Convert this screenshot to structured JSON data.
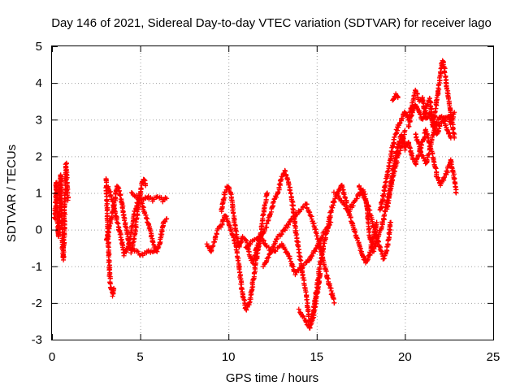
{
  "chart_data": {
    "type": "scatter",
    "title": "Day 146 of 2021, Sidereal Day-to-day VTEC variation (SDTVAR) for receiver lago",
    "xlabel": "GPS time / hours",
    "ylabel": "SDTVAR / TECUs",
    "xlim": [
      0,
      25
    ],
    "ylim": [
      -3,
      5
    ],
    "xticks": [
      0,
      5,
      10,
      15,
      20,
      25
    ],
    "yticks": [
      -3,
      -2,
      -1,
      0,
      1,
      2,
      3,
      4,
      5
    ],
    "xtick_labels": [
      "0",
      "5",
      "10",
      "15",
      "20",
      "25"
    ],
    "ytick_labels": [
      "-3",
      "-2",
      "-1",
      "0",
      "1",
      "2",
      "3",
      "4",
      "5"
    ],
    "grid": true,
    "grid_style": "dotted",
    "legend": "none",
    "marker": "plus",
    "marker_color": "#ff0000",
    "series": [
      {
        "segments": [
          [
            [
              0.15,
              0.3
            ],
            [
              0.2,
              0.8
            ],
            [
              0.25,
              1.3
            ],
            [
              0.3,
              0.6
            ],
            [
              0.35,
              -0.2
            ],
            [
              0.4,
              0.2
            ],
            [
              0.45,
              1.0
            ],
            [
              0.5,
              1.5
            ],
            [
              0.55,
              0.4
            ],
            [
              0.6,
              -0.5
            ],
            [
              0.65,
              -0.8
            ],
            [
              0.7,
              0.2
            ],
            [
              0.75,
              1.0
            ],
            [
              0.8,
              1.8
            ],
            [
              0.85,
              1.2
            ],
            [
              0.9,
              0.8
            ]
          ],
          [
            [
              3.05,
              1.4
            ],
            [
              3.1,
              0.8
            ],
            [
              3.15,
              0.2
            ],
            [
              3.2,
              -0.5
            ],
            [
              3.25,
              -1.0
            ],
            [
              3.3,
              -1.5
            ],
            [
              3.4,
              -1.7
            ],
            [
              3.45,
              -1.8
            ],
            [
              3.5,
              -1.6
            ]
          ],
          [
            [
              3.1,
              -0.3
            ],
            [
              3.3,
              0.2
            ],
            [
              3.5,
              0.6
            ],
            [
              3.7,
              1.2
            ],
            [
              3.9,
              0.9
            ],
            [
              4.1,
              0.3
            ],
            [
              4.3,
              -0.2
            ],
            [
              4.5,
              -0.6
            ],
            [
              4.7,
              -0.1
            ],
            [
              4.9,
              0.7
            ],
            [
              5.1,
              1.3
            ],
            [
              5.2,
              1.4
            ],
            [
              5.3,
              1.2
            ]
          ],
          [
            [
              3.1,
              1.2
            ],
            [
              3.3,
              1.0
            ],
            [
              3.5,
              0.6
            ],
            [
              3.7,
              0.2
            ],
            [
              3.9,
              -0.2
            ],
            [
              4.1,
              -0.7
            ],
            [
              4.3,
              -0.5
            ],
            [
              4.5,
              0.0
            ],
            [
              4.7,
              0.5
            ],
            [
              4.9,
              0.8
            ],
            [
              5.1,
              0.7
            ],
            [
              5.3,
              0.4
            ],
            [
              5.5,
              0.1
            ],
            [
              5.7,
              -0.3
            ],
            [
              5.9,
              -0.6
            ],
            [
              6.1,
              -0.4
            ],
            [
              6.3,
              0.2
            ],
            [
              6.5,
              0.3
            ]
          ],
          [
            [
              4.5,
              1.0
            ],
            [
              4.8,
              0.9
            ],
            [
              5.1,
              0.8
            ],
            [
              5.4,
              0.9
            ],
            [
              5.7,
              0.8
            ],
            [
              6.0,
              0.9
            ],
            [
              6.3,
              0.8
            ],
            [
              6.5,
              0.85
            ]
          ],
          [
            [
              4.5,
              -0.5
            ],
            [
              4.8,
              -0.6
            ],
            [
              5.1,
              -0.7
            ],
            [
              5.4,
              -0.6
            ],
            [
              5.7,
              -0.6
            ],
            [
              6.0,
              -0.5
            ]
          ],
          [
            [
              8.8,
              -0.4
            ],
            [
              9.0,
              -0.6
            ],
            [
              9.2,
              -0.3
            ],
            [
              9.4,
              0.0
            ],
            [
              9.6,
              0.1
            ],
            [
              9.8,
              0.4
            ],
            [
              10.0,
              0.2
            ],
            [
              10.2,
              -0.1
            ],
            [
              10.4,
              -0.4
            ],
            [
              10.6,
              -1.0
            ],
            [
              10.8,
              -1.8
            ],
            [
              11.0,
              -2.2
            ],
            [
              11.2,
              -2.0
            ],
            [
              11.4,
              -1.4
            ],
            [
              11.6,
              -0.8
            ],
            [
              11.8,
              -0.2
            ],
            [
              12.0,
              0.5
            ],
            [
              12.2,
              1.0
            ]
          ],
          [
            [
              9.6,
              0.5
            ],
            [
              9.8,
              1.0
            ],
            [
              10.0,
              1.2
            ],
            [
              10.2,
              0.8
            ],
            [
              10.4,
              0.0
            ],
            [
              10.6,
              -0.5
            ],
            [
              10.8,
              -0.2
            ],
            [
              11.0,
              -0.3
            ],
            [
              11.2,
              -0.7
            ],
            [
              11.4,
              -0.9
            ],
            [
              11.6,
              -0.5
            ],
            [
              11.8,
              -0.2
            ],
            [
              12.0,
              -0.1
            ],
            [
              12.2,
              0.2
            ],
            [
              12.4,
              0.5
            ],
            [
              12.6,
              0.8
            ],
            [
              12.8,
              1.0
            ],
            [
              13.0,
              1.4
            ],
            [
              13.2,
              1.6
            ],
            [
              13.4,
              1.3
            ],
            [
              13.6,
              0.8
            ],
            [
              13.8,
              0.0
            ],
            [
              14.0,
              -0.6
            ],
            [
              14.2,
              -1.2
            ],
            [
              14.4,
              -1.8
            ],
            [
              14.6,
              -2.5
            ],
            [
              14.8,
              -2.3
            ],
            [
              15.0,
              -1.6
            ],
            [
              15.2,
              -0.9
            ],
            [
              15.4,
              -0.4
            ],
            [
              15.6,
              0.0
            ],
            [
              15.8,
              0.5
            ],
            [
              16.0,
              0.8
            ],
            [
              16.2,
              1.0
            ],
            [
              16.4,
              1.2
            ],
            [
              16.6,
              0.9
            ],
            [
              16.8,
              0.5
            ],
            [
              17.0,
              0.2
            ],
            [
              17.2,
              -0.1
            ],
            [
              17.4,
              -0.4
            ],
            [
              17.6,
              -0.7
            ],
            [
              17.8,
              -0.9
            ],
            [
              18.0,
              -0.7
            ],
            [
              18.2,
              -0.3
            ],
            [
              18.4,
              0.2
            ]
          ],
          [
            [
              11.0,
              -0.5
            ],
            [
              11.4,
              -0.3
            ],
            [
              11.8,
              -0.2
            ],
            [
              12.2,
              -0.5
            ],
            [
              12.6,
              -0.6
            ],
            [
              13.0,
              -0.4
            ],
            [
              13.4,
              -0.7
            ],
            [
              13.8,
              -1.2
            ],
            [
              14.2,
              -1.0
            ],
            [
              14.6,
              -0.8
            ],
            [
              15.0,
              -0.5
            ],
            [
              15.4,
              -0.1
            ],
            [
              15.8,
              0.2
            ]
          ],
          [
            [
              12.0,
              -1.0
            ],
            [
              12.4,
              -0.6
            ],
            [
              12.8,
              -0.2
            ],
            [
              13.2,
              0.0
            ],
            [
              13.6,
              0.3
            ],
            [
              14.0,
              0.5
            ],
            [
              14.4,
              0.7
            ],
            [
              14.8,
              0.2
            ],
            [
              15.2,
              -0.5
            ],
            [
              15.6,
              -1.3
            ],
            [
              16.0,
              -2.0
            ]
          ],
          [
            [
              14.0,
              -2.2
            ],
            [
              14.4,
              -2.5
            ],
            [
              14.6,
              -2.7
            ],
            [
              14.8,
              -2.4
            ],
            [
              15.0,
              -1.8
            ],
            [
              15.2,
              -1.2
            ]
          ],
          [
            [
              16.0,
              1.0
            ],
            [
              16.4,
              0.8
            ],
            [
              16.8,
              0.5
            ],
            [
              17.2,
              0.8
            ],
            [
              17.6,
              1.1
            ],
            [
              18.0,
              0.5
            ],
            [
              18.4,
              -0.2
            ],
            [
              18.8,
              -0.8
            ],
            [
              19.0,
              -0.5
            ],
            [
              19.2,
              0.2
            ]
          ],
          [
            [
              17.4,
              1.2
            ],
            [
              17.8,
              0.8
            ],
            [
              18.0,
              -0.2
            ],
            [
              18.2,
              -0.6
            ],
            [
              18.4,
              -0.3
            ],
            [
              18.6,
              0.0
            ],
            [
              18.8,
              0.3
            ],
            [
              19.0,
              0.8
            ],
            [
              19.2,
              1.2
            ],
            [
              19.4,
              1.6
            ],
            [
              19.6,
              2.0
            ],
            [
              19.8,
              2.3
            ],
            [
              20.0,
              2.7
            ]
          ],
          [
            [
              18.6,
              0.5
            ],
            [
              18.8,
              1.0
            ],
            [
              19.0,
              1.5
            ],
            [
              19.2,
              2.0
            ],
            [
              19.4,
              2.5
            ],
            [
              19.6,
              2.8
            ],
            [
              19.8,
              3.0
            ],
            [
              20.0,
              3.2
            ],
            [
              20.2,
              3.0
            ],
            [
              20.4,
              3.4
            ],
            [
              20.6,
              3.8
            ],
            [
              20.8,
              3.5
            ],
            [
              21.0,
              3.6
            ],
            [
              21.2,
              3.0
            ],
            [
              21.4,
              3.2
            ],
            [
              21.6,
              2.8
            ],
            [
              21.8,
              3.5
            ],
            [
              22.0,
              4.2
            ],
            [
              22.1,
              4.6
            ],
            [
              22.2,
              4.5
            ],
            [
              22.4,
              3.8
            ],
            [
              22.6,
              3.2
            ],
            [
              22.8,
              2.5
            ]
          ],
          [
            [
              19.0,
              0.6
            ],
            [
              19.2,
              1.2
            ],
            [
              19.4,
              1.8
            ],
            [
              19.6,
              2.3
            ],
            [
              19.8,
              2.6
            ],
            [
              20.0,
              2.2
            ],
            [
              20.2,
              2.4
            ],
            [
              20.4,
              2.0
            ],
            [
              20.6,
              1.8
            ],
            [
              20.8,
              2.1
            ],
            [
              21.0,
              2.4
            ],
            [
              21.2,
              2.7
            ],
            [
              21.4,
              2.3
            ],
            [
              21.6,
              2.0
            ],
            [
              21.8,
              1.5
            ],
            [
              22.0,
              1.2
            ],
            [
              22.2,
              1.4
            ],
            [
              22.4,
              1.6
            ],
            [
              22.6,
              1.9
            ],
            [
              22.8,
              1.4
            ],
            [
              22.9,
              1.0
            ]
          ],
          [
            [
              19.3,
              3.5
            ],
            [
              19.4,
              3.6
            ],
            [
              19.5,
              3.7
            ],
            [
              19.6,
              3.6
            ]
          ],
          [
            [
              20.2,
              2.8
            ],
            [
              20.4,
              3.2
            ],
            [
              20.6,
              3.4
            ],
            [
              20.8,
              3.2
            ],
            [
              21.0,
              3.0
            ],
            [
              21.2,
              3.3
            ],
            [
              21.4,
              3.6
            ],
            [
              21.6,
              2.9
            ],
            [
              21.8,
              2.6
            ],
            [
              22.0,
              2.9
            ],
            [
              22.2,
              3.0
            ],
            [
              22.4,
              3.1
            ],
            [
              22.6,
              2.9
            ],
            [
              22.8,
              3.2
            ]
          ],
          [
            [
              20.6,
              2.6
            ],
            [
              20.8,
              2.3
            ],
            [
              21.0,
              2.0
            ],
            [
              21.2,
              1.8
            ],
            [
              21.4,
              2.2
            ],
            [
              21.6,
              2.6
            ],
            [
              21.8,
              2.9
            ],
            [
              22.0,
              3.1
            ],
            [
              22.2,
              3.0
            ],
            [
              22.4,
              2.7
            ],
            [
              22.6,
              2.5
            ]
          ]
        ]
      }
    ]
  }
}
